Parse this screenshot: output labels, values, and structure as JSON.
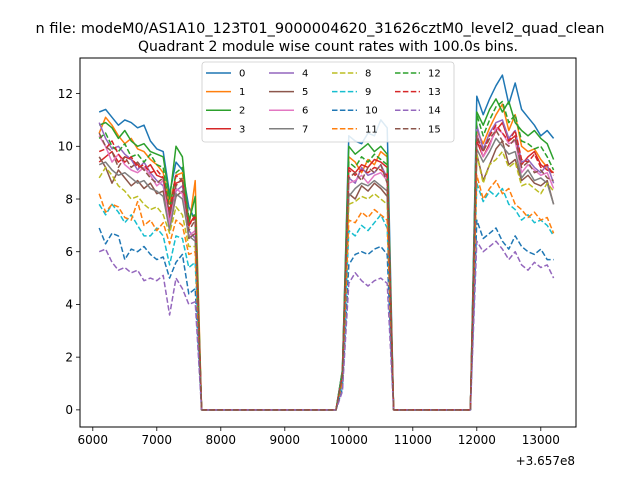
{
  "figure": {
    "suptitle": "n file: modeM0/AS1A10_123T01_9000004620_31626cztM0_level2_quad_clean",
    "offset_label": "+3.657e8"
  },
  "chart_data": {
    "type": "line",
    "title": "Quadrant 2 module wise count rates with 100.0s bins.",
    "xlabel": "",
    "ylabel": "",
    "x_offset": 365700000,
    "xlim": [
      5800,
      13550
    ],
    "ylim": [
      -0.65,
      13.35
    ],
    "xticks": [
      6000,
      7000,
      8000,
      9000,
      10000,
      11000,
      12000,
      13000
    ],
    "yticks": [
      0,
      2,
      4,
      6,
      8,
      10,
      12
    ],
    "legend": {
      "placement": "upper center",
      "columns": 4
    },
    "grid": false,
    "x": [
      6100,
      6200,
      6300,
      6400,
      6500,
      6600,
      6700,
      6800,
      6900,
      7000,
      7100,
      7200,
      7300,
      7400,
      7500,
      7600,
      7700,
      7800,
      9700,
      9800,
      9900,
      10000,
      10100,
      10200,
      10300,
      10400,
      10500,
      10600,
      10700,
      11700,
      11800,
      11900,
      12000,
      12100,
      12200,
      12300,
      12400,
      12500,
      12600,
      12700,
      12800,
      12900,
      13000,
      13100,
      13200
    ],
    "series": [
      {
        "name": "0",
        "color": "#1f77b4",
        "dash": false,
        "values": [
          11.3,
          11.4,
          11.1,
          10.8,
          11.0,
          10.9,
          10.7,
          10.8,
          10.2,
          9.9,
          9.8,
          8.2,
          9.4,
          9.1,
          7.7,
          7.2,
          0,
          0,
          0,
          0,
          1.5,
          10.4,
          10.2,
          10.1,
          10.5,
          10.4,
          11.0,
          10.7,
          0,
          0,
          0,
          0,
          11.9,
          11.2,
          11.8,
          12.3,
          12.7,
          11.6,
          12.4,
          11.4,
          11.1,
          10.8,
          10.4,
          10.6,
          10.3
        ]
      },
      {
        "name": "1",
        "color": "#ff7f0e",
        "dash": false,
        "values": [
          10.5,
          11.1,
          10.8,
          10.4,
          10.1,
          10.3,
          9.9,
          9.8,
          9.5,
          9.3,
          9.0,
          7.8,
          8.9,
          9.0,
          6.9,
          8.7,
          0,
          0,
          0,
          0,
          1.4,
          9.6,
          9.4,
          9.0,
          9.5,
          9.3,
          9.8,
          9.6,
          0,
          0,
          0,
          0,
          10.6,
          10.1,
          10.7,
          11.2,
          11.6,
          10.6,
          11.2,
          10.0,
          9.8,
          9.9,
          9.5,
          9.2,
          9.0
        ]
      },
      {
        "name": "2",
        "color": "#2ca02c",
        "dash": false,
        "values": [
          10.8,
          10.9,
          10.7,
          10.3,
          10.6,
          10.2,
          10.0,
          10.1,
          9.8,
          9.7,
          9.6,
          8.0,
          10.0,
          9.6,
          7.1,
          8.1,
          0,
          0,
          0,
          0,
          1.5,
          10.0,
          9.7,
          9.9,
          10.1,
          9.8,
          10.0,
          9.7,
          0,
          0,
          0,
          0,
          11.3,
          10.8,
          11.4,
          11.8,
          11.3,
          11.7,
          10.9,
          10.6,
          10.4,
          10.6,
          10.3,
          10.1,
          9.5
        ]
      },
      {
        "name": "3",
        "color": "#d62728",
        "dash": false,
        "values": [
          9.4,
          9.6,
          9.8,
          9.4,
          9.6,
          9.5,
          9.3,
          9.1,
          9.3,
          8.9,
          8.8,
          7.3,
          8.6,
          8.7,
          7.0,
          7.4,
          0,
          0,
          0,
          0,
          1.3,
          9.2,
          9.0,
          9.3,
          9.2,
          9.5,
          9.4,
          9.2,
          0,
          0,
          0,
          0,
          10.2,
          9.6,
          10.1,
          10.6,
          10.9,
          10.2,
          10.4,
          9.3,
          9.6,
          9.8,
          9.3,
          9.1,
          9.0
        ]
      },
      {
        "name": "4",
        "color": "#9467bd",
        "dash": false,
        "values": [
          10.9,
          10.3,
          9.9,
          10.0,
          9.7,
          9.5,
          9.1,
          9.4,
          9.0,
          8.7,
          8.5,
          7.1,
          8.3,
          8.5,
          6.8,
          6.5,
          0,
          0,
          0,
          0,
          1.4,
          8.8,
          8.6,
          9.2,
          8.9,
          9.0,
          9.3,
          8.8,
          0,
          0,
          0,
          0,
          10.8,
          9.9,
          10.5,
          10.9,
          11.0,
          10.3,
          10.6,
          9.4,
          9.5,
          9.2,
          9.0,
          9.3,
          8.6
        ]
      },
      {
        "name": "5",
        "color": "#8c564b",
        "dash": false,
        "values": [
          9.6,
          9.2,
          8.6,
          9.1,
          8.8,
          8.5,
          8.7,
          8.4,
          8.6,
          8.2,
          8.3,
          6.9,
          8.1,
          8.3,
          6.5,
          6.7,
          0,
          0,
          0,
          0,
          1.2,
          8.2,
          8.0,
          8.5,
          8.3,
          8.6,
          8.4,
          8.1,
          0,
          0,
          0,
          0,
          9.7,
          8.7,
          9.3,
          9.9,
          10.2,
          9.3,
          9.5,
          8.7,
          8.9,
          8.6,
          8.5,
          8.7,
          7.8
        ]
      },
      {
        "name": "6",
        "color": "#e377c2",
        "dash": false,
        "values": [
          10.4,
          10.0,
          9.4,
          9.7,
          9.3,
          9.1,
          9.0,
          9.2,
          8.9,
          8.5,
          8.7,
          7.0,
          8.4,
          8.2,
          6.6,
          6.8,
          0,
          0,
          0,
          0,
          1.3,
          8.6,
          8.7,
          8.9,
          8.6,
          8.9,
          9.0,
          8.7,
          0,
          0,
          0,
          0,
          10.5,
          9.6,
          10.0,
          10.7,
          10.5,
          10.1,
          10.2,
          9.0,
          9.3,
          9.1,
          8.9,
          9.0,
          8.4
        ]
      },
      {
        "name": "7",
        "color": "#7f7f7f",
        "dash": false,
        "values": [
          9.3,
          9.4,
          9.1,
          8.9,
          9.0,
          8.8,
          8.6,
          8.7,
          8.4,
          8.3,
          8.1,
          6.8,
          8.2,
          8.0,
          6.6,
          6.4,
          0,
          0,
          0,
          0,
          1.3,
          8.1,
          8.4,
          8.6,
          8.5,
          8.7,
          8.5,
          8.3,
          0,
          0,
          0,
          0,
          9.9,
          9.4,
          9.8,
          10.3,
          10.0,
          9.7,
          9.8,
          8.8,
          9.1,
          8.7,
          8.8,
          8.6,
          7.8
        ]
      },
      {
        "name": "8",
        "color": "#bcbd22",
        "dash": true,
        "values": [
          8.8,
          9.2,
          8.9,
          8.5,
          8.3,
          8.0,
          8.1,
          7.8,
          7.6,
          7.7,
          7.4,
          6.7,
          7.7,
          7.4,
          6.2,
          6.2,
          0,
          0,
          0,
          0,
          1.2,
          7.8,
          7.9,
          8.1,
          8.0,
          8.2,
          8.0,
          7.8,
          0,
          0,
          0,
          0,
          9.7,
          8.6,
          9.3,
          9.5,
          9.8,
          9.2,
          9.4,
          8.5,
          8.6,
          8.4,
          8.2,
          8.6,
          8.3
        ]
      },
      {
        "name": "9",
        "color": "#17becf",
        "dash": true,
        "values": [
          7.8,
          7.4,
          7.8,
          7.5,
          7.1,
          7.4,
          7.0,
          6.6,
          6.6,
          6.9,
          6.6,
          5.5,
          6.6,
          6.5,
          5.4,
          5.6,
          0,
          0,
          0,
          0,
          1.0,
          6.8,
          6.6,
          7.0,
          6.8,
          7.1,
          7.4,
          6.9,
          0,
          0,
          0,
          0,
          8.6,
          7.9,
          8.3,
          8.1,
          8.4,
          7.8,
          7.6,
          7.2,
          7.4,
          7.1,
          7.2,
          7.0,
          6.6
        ]
      },
      {
        "name": "10",
        "color": "#1f77b4",
        "dash": true,
        "values": [
          6.9,
          6.3,
          6.7,
          6.6,
          5.7,
          6.1,
          6.0,
          6.2,
          5.9,
          5.7,
          5.8,
          5.0,
          5.6,
          5.9,
          4.4,
          4.6,
          0,
          0,
          0,
          0,
          0.8,
          5.5,
          5.9,
          6.0,
          5.9,
          6.1,
          6.2,
          5.9,
          0,
          0,
          0,
          0,
          7.2,
          6.5,
          6.7,
          6.9,
          6.4,
          6.1,
          6.6,
          6.2,
          6.0,
          5.9,
          6.1,
          5.7,
          5.7
        ]
      },
      {
        "name": "11",
        "color": "#ff7f0e",
        "dash": true,
        "values": [
          8.2,
          7.5,
          7.8,
          7.7,
          7.3,
          7.2,
          7.9,
          7.0,
          7.2,
          6.8,
          7.1,
          6.3,
          7.2,
          7.0,
          5.9,
          6.0,
          0,
          0,
          0,
          0,
          1.1,
          7.2,
          7.1,
          7.5,
          7.3,
          7.6,
          7.4,
          7.2,
          0,
          0,
          0,
          0,
          8.9,
          8.0,
          8.4,
          8.7,
          8.2,
          8.4,
          7.8,
          7.6,
          7.3,
          7.5,
          7.2,
          7.3,
          6.7
        ]
      },
      {
        "name": "12",
        "color": "#2ca02c",
        "dash": true,
        "values": [
          10.3,
          10.5,
          10.0,
          9.8,
          10.1,
          9.6,
          9.7,
          9.4,
          9.7,
          9.3,
          9.2,
          7.6,
          9.0,
          9.2,
          7.3,
          7.4,
          0,
          0,
          0,
          0,
          1.4,
          9.4,
          9.2,
          9.6,
          9.4,
          9.7,
          9.5,
          9.3,
          0,
          0,
          0,
          0,
          11.2,
          10.4,
          11.0,
          11.5,
          11.7,
          10.9,
          11.2,
          10.2,
          10.1,
          9.9,
          10.0,
          9.6,
          9.1
        ]
      },
      {
        "name": "13",
        "color": "#d62728",
        "dash": true,
        "values": [
          9.8,
          9.9,
          10.2,
          9.7,
          9.4,
          9.6,
          9.2,
          9.3,
          9.0,
          9.1,
          8.8,
          7.5,
          8.9,
          8.7,
          7.0,
          7.3,
          0,
          0,
          0,
          0,
          1.3,
          9.1,
          8.9,
          9.1,
          9.0,
          9.2,
          9.1,
          8.9,
          0,
          0,
          0,
          0,
          10.3,
          9.8,
          10.4,
          10.8,
          10.5,
          10.2,
          10.6,
          9.5,
          9.4,
          9.7,
          9.2,
          9.3,
          8.9
        ]
      },
      {
        "name": "14",
        "color": "#9467bd",
        "dash": true,
        "values": [
          6.0,
          6.1,
          5.6,
          5.3,
          5.4,
          5.2,
          5.3,
          4.9,
          5.0,
          4.9,
          5.1,
          3.6,
          5.0,
          4.6,
          4.0,
          4.1,
          0,
          0,
          0,
          0,
          0.7,
          4.8,
          5.2,
          4.9,
          4.7,
          4.9,
          5.0,
          4.8,
          0,
          0,
          0,
          0,
          6.4,
          6.0,
          6.2,
          6.4,
          6.1,
          5.7,
          6.0,
          5.5,
          5.3,
          5.6,
          5.4,
          5.5,
          5.0
        ]
      },
      {
        "name": "15",
        "color": "#8c564b",
        "dash": true,
        "values": [
          10.5,
          10.0,
          9.8,
          9.2,
          9.6,
          9.2,
          9.4,
          9.1,
          8.8,
          8.6,
          8.8,
          7.4,
          8.5,
          8.8,
          6.8,
          7.2,
          0,
          0,
          0,
          0,
          1.3,
          8.8,
          9.0,
          8.7,
          9.2,
          9.0,
          9.3,
          8.6,
          0,
          0,
          0,
          0,
          10.4,
          9.8,
          10.3,
          10.6,
          10.2,
          10.0,
          10.3,
          9.2,
          9.4,
          9.0,
          9.1,
          8.8,
          8.7
        ]
      }
    ]
  }
}
